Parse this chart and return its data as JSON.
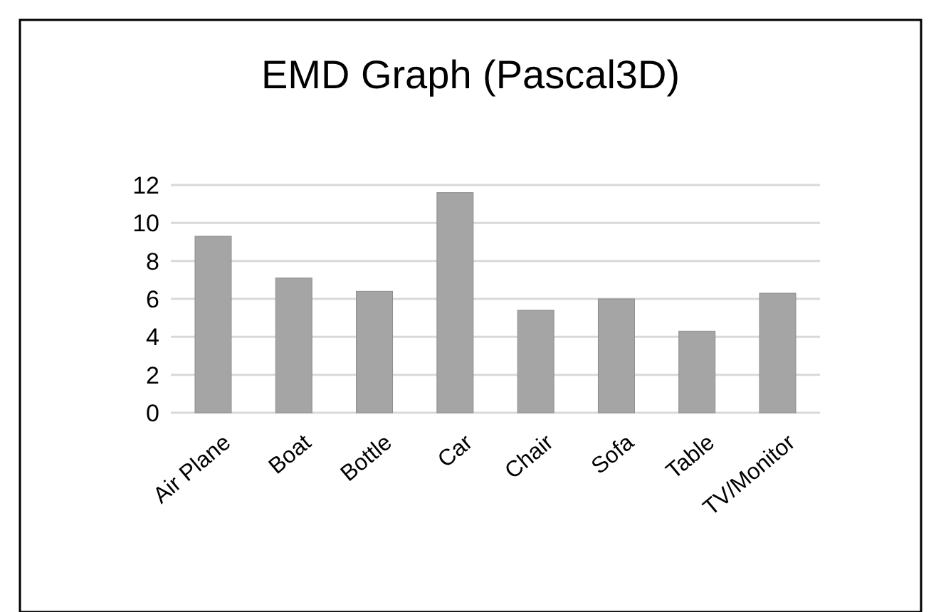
{
  "chart_data": {
    "type": "bar",
    "title": "EMD Graph (Pascal3D)",
    "categories": [
      "Air Plane",
      "Boat",
      "Bottle",
      "Car",
      "Chair",
      "Sofa",
      "Table",
      "TV/Monitor"
    ],
    "values": [
      9.3,
      7.1,
      6.4,
      11.6,
      5.4,
      6.0,
      4.3,
      6.3
    ],
    "color": "#a5a5a5",
    "ylim": [
      0,
      12
    ],
    "yticks": [
      0,
      2,
      4,
      6,
      8,
      10,
      12
    ],
    "grid": "y"
  }
}
